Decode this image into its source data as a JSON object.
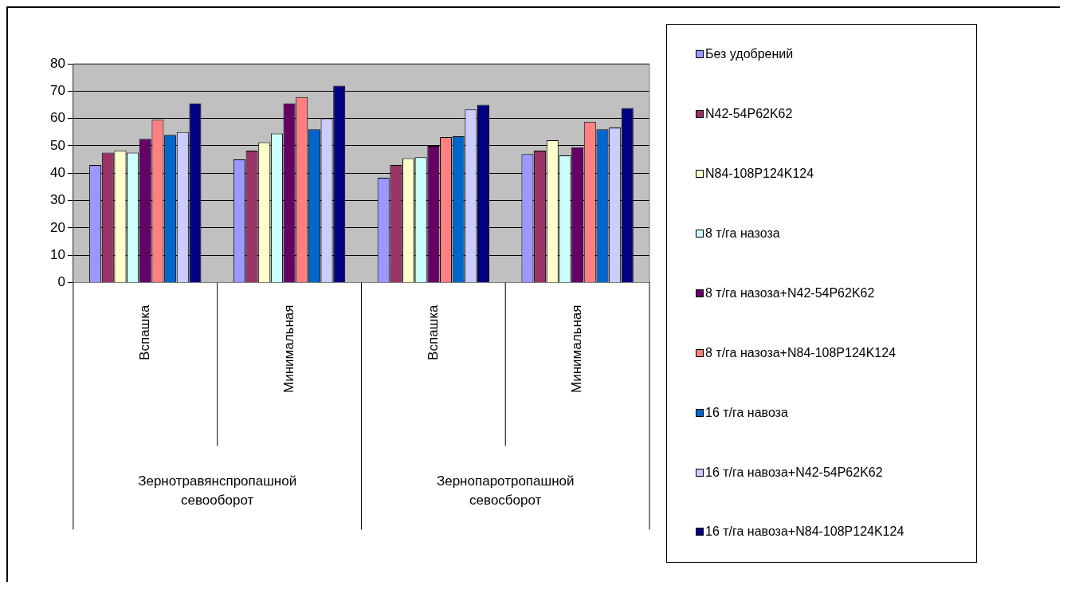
{
  "chart_data": {
    "type": "bar",
    "categories": [
      "Вспашка",
      "Минимальная",
      "Вспашка",
      "Минимальная"
    ],
    "annotations": [
      "Зернотравянспропашной севооборот",
      "Зернопаротропашной севосборот"
    ],
    "ylim": [
      0,
      80
    ],
    "yticks": [
      0,
      10,
      20,
      30,
      40,
      50,
      60,
      70,
      80
    ],
    "grid": "y",
    "legend": "right",
    "series": [
      {
        "name": "Без удобрений",
        "color": "#9999ff",
        "values": [
          43,
          45,
          38.3,
          47
        ]
      },
      {
        "name": "N42-54P62K62",
        "color": "#993366",
        "values": [
          47.5,
          48.2,
          43,
          48.2
        ]
      },
      {
        "name": "N84-108P124K124",
        "color": "#ffffcc",
        "values": [
          48.3,
          51.3,
          45.5,
          52
        ]
      },
      {
        "name": "8 т/га назоза",
        "color": "#ccffff",
        "values": [
          47.5,
          54.5,
          45.8,
          46.5
        ]
      },
      {
        "name": "8 т/га назоза+N42-54P62K62",
        "color": "#660066",
        "values": [
          52.5,
          65.5,
          50,
          49.5
        ]
      },
      {
        "name": "8 т/га назоза+N84-108P124K124",
        "color": "#ff8080",
        "values": [
          59.5,
          67.8,
          53.2,
          58.8
        ]
      },
      {
        "name": "16 т/га навоза",
        "color": "#0066cc",
        "values": [
          54,
          56,
          53.5,
          56
        ]
      },
      {
        "name": "16 т/га навоза+N42-54P62K62",
        "color": "#ccccff",
        "values": [
          55,
          60,
          63.3,
          56.7
        ]
      },
      {
        "name": "16 т/га навоза+N84-108P124K124",
        "color": "#000080",
        "values": [
          65.5,
          72,
          65,
          63.8
        ]
      }
    ]
  }
}
